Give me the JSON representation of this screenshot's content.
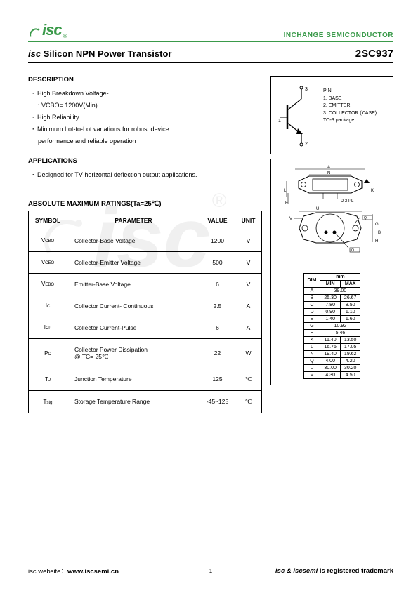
{
  "header": {
    "logo_text": "isc",
    "logo_r": "®",
    "company": "INCHANGE SEMICONDUCTOR"
  },
  "title": {
    "prefix": "isc",
    "main": " Silicon NPN Power Transistor",
    "part_number": "2SC937"
  },
  "description": {
    "heading": "DESCRIPTION",
    "items": [
      "High Breakdown Voltage-",
      ": VCBO= 1200V(Min)",
      "High Reliability",
      "Minimum Lot-to-Lot variations for robust device",
      "performance and reliable operation"
    ]
  },
  "applications": {
    "heading": "APPLICATIONS",
    "items": [
      "Designed for TV horizontal deflection output applications."
    ]
  },
  "ratings_title": "ABSOLUTE MAXIMUM RATINGS(Ta=25℃)",
  "ratings": {
    "headers": [
      "SYMBOL",
      "PARAMETER",
      "VALUE",
      "UNIT"
    ],
    "rows": [
      {
        "sym": "V",
        "sub": "CBO",
        "param": "Collector-Base Voltage",
        "value": "1200",
        "unit": "V"
      },
      {
        "sym": "V",
        "sub": "CEO",
        "param": "Collector-Emitter Voltage",
        "value": "500",
        "unit": "V"
      },
      {
        "sym": "V",
        "sub": "EBO",
        "param": "Emitter-Base Voltage",
        "value": "6",
        "unit": "V"
      },
      {
        "sym": "I",
        "sub": "C",
        "param": "Collector Current- Continuous",
        "value": "2.5",
        "unit": "A"
      },
      {
        "sym": "I",
        "sub": "CP",
        "param": "Collector Current-Pulse",
        "value": "6",
        "unit": "A"
      },
      {
        "sym": "P",
        "sub": "C",
        "param": "Collector Power Dissipation\n@ TC= 25℃",
        "value": "22",
        "unit": "W"
      },
      {
        "sym": "T",
        "sub": "J",
        "param": "Junction Temperature",
        "value": "125",
        "unit": "℃"
      },
      {
        "sym": "T",
        "sub": "stg",
        "param": "Storage Temperature Range",
        "value": "-45~125",
        "unit": "℃"
      }
    ]
  },
  "pin_diagram": {
    "label_pin": "PIN",
    "pin1": "1. BASE",
    "pin2": "2. EMITTER",
    "pin3": "3. COLLECTOR (CASE)",
    "package": "TO-3 package"
  },
  "dimensions": {
    "header_dim": "DIM",
    "header_mm": "mm",
    "header_min": "MIN",
    "header_max": "MAX",
    "rows": [
      {
        "dim": "A",
        "min": "39.00",
        "max": "",
        "span": true
      },
      {
        "dim": "B",
        "min": "25.30",
        "max": "26.67"
      },
      {
        "dim": "C",
        "min": "7.80",
        "max": "8.50"
      },
      {
        "dim": "D",
        "min": "0.90",
        "max": "1.10"
      },
      {
        "dim": "E",
        "min": "1.40",
        "max": "1.60"
      },
      {
        "dim": "G",
        "min": "10.92",
        "max": "",
        "span": true
      },
      {
        "dim": "H",
        "min": "5.46",
        "max": "",
        "span": true
      },
      {
        "dim": "K",
        "min": "11.40",
        "max": "13.50"
      },
      {
        "dim": "L",
        "min": "16.75",
        "max": "17.05"
      },
      {
        "dim": "N",
        "min": "19.40",
        "max": "19.62"
      },
      {
        "dim": "Q",
        "min": "4.00",
        "max": "4.20"
      },
      {
        "dim": "U",
        "min": "30.00",
        "max": "30.20"
      },
      {
        "dim": "V",
        "min": "4.30",
        "max": "4.50"
      }
    ]
  },
  "footer": {
    "website_label": "isc website：",
    "website": "www.iscsemi.cn",
    "page": "1",
    "trademark_prefix": "isc & iscsemi",
    "trademark_suffix": " is registered trademark"
  }
}
